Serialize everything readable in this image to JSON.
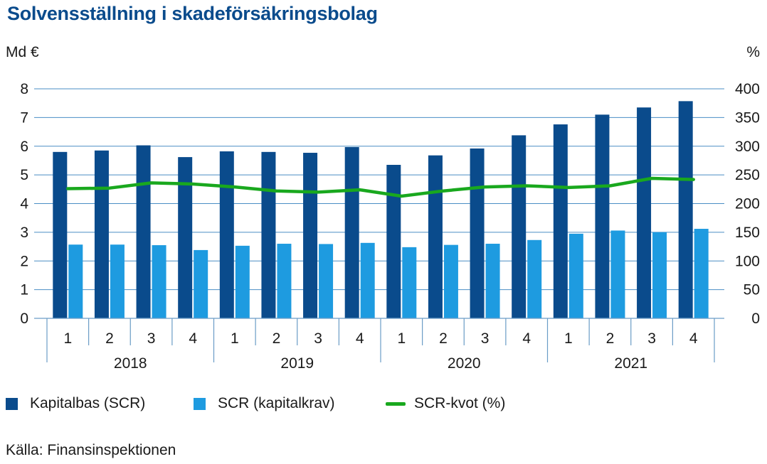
{
  "title": "Solvensställning i skadeförsäkringsbolag",
  "source": "Källa: Finansinspektionen",
  "colors": {
    "kapitalbas": "#0a4b8c",
    "scr": "#1e9be0",
    "kvot": "#19a81e",
    "grid": "#4a8ec4",
    "axis": "#6a9cc6"
  },
  "chart_data": {
    "type": "bar",
    "title": "Solvensställning i skadeförsäkringsbolag",
    "ylabel_left": "Md €",
    "ylabel_right": "%",
    "ylim_left": [
      0,
      8
    ],
    "ylim_right": [
      0,
      400
    ],
    "yticks_left": [
      "0",
      "1",
      "2",
      "3",
      "4",
      "5",
      "6",
      "7",
      "8"
    ],
    "yticks_right": [
      "0",
      "50",
      "100",
      "150",
      "200",
      "250",
      "300",
      "350",
      "400"
    ],
    "grid": true,
    "legend_position": "bottom",
    "categories": [
      "1",
      "2",
      "3",
      "4",
      "1",
      "2",
      "3",
      "4",
      "1",
      "2",
      "3",
      "4",
      "1",
      "2",
      "3",
      "4"
    ],
    "groups": [
      {
        "label": "2018",
        "span": 4
      },
      {
        "label": "2019",
        "span": 4
      },
      {
        "label": "2020",
        "span": 4
      },
      {
        "label": "2021",
        "span": 4
      }
    ],
    "series": [
      {
        "name": "Kapitalbas (SCR)",
        "type": "bar",
        "axis": "left",
        "values": [
          5.8,
          5.85,
          6.03,
          5.62,
          5.82,
          5.8,
          5.77,
          5.97,
          5.35,
          5.68,
          5.92,
          6.38,
          6.76,
          7.1,
          7.35,
          7.57
        ]
      },
      {
        "name": "SCR (kapitalkrav)",
        "type": "bar",
        "axis": "left",
        "values": [
          2.57,
          2.57,
          2.55,
          2.38,
          2.53,
          2.6,
          2.59,
          2.63,
          2.48,
          2.56,
          2.6,
          2.73,
          2.95,
          3.06,
          3.0,
          3.12
        ]
      },
      {
        "name": "SCR-kvot (%)",
        "type": "line",
        "axis": "right",
        "values": [
          226,
          227,
          236,
          234,
          229,
          222,
          220,
          224,
          213,
          222,
          229,
          231,
          228,
          231,
          244,
          242
        ]
      }
    ]
  },
  "legend": {
    "item1": "Kapitalbas (SCR)",
    "item2": "SCR (kapitalkrav)",
    "item3": "SCR-kvot (%)"
  }
}
